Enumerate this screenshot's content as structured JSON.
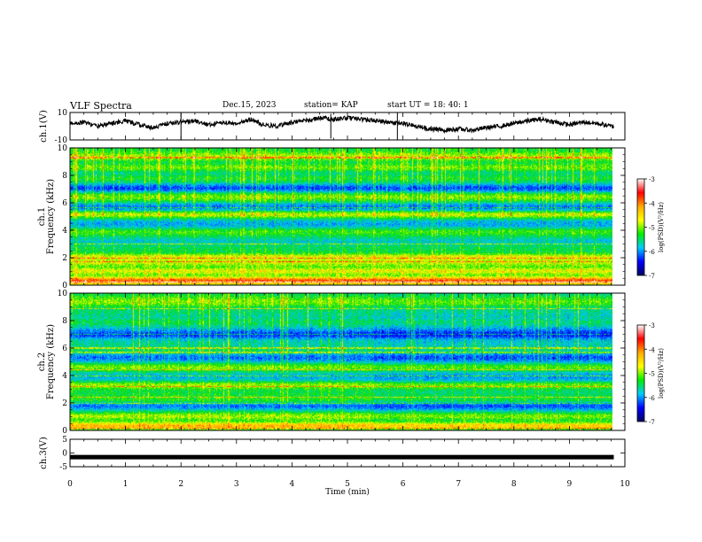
{
  "header": {
    "title": "VLF Spectra",
    "date": "Dec.15, 2023",
    "station": "station= KAP",
    "start": "start UT =  18: 40: 1"
  },
  "colorbar": {
    "label": "log(PSD)(V²/Hz)",
    "ticks": [
      "-3",
      "-4",
      "-5",
      "-6",
      "-7"
    ],
    "colors": [
      "#ffffff",
      "#ff0000",
      "#ffaa00",
      "#ffff00",
      "#00ee00",
      "#00ccff",
      "#0000ff",
      "#000060"
    ]
  },
  "chart_data": [
    {
      "type": "line",
      "panel": "ch1-waveform",
      "ylabel": "ch.1(V)",
      "ylim": [
        -10,
        10
      ],
      "ytick_labels": [
        "10",
        "-10"
      ],
      "x": [
        0,
        0.25,
        0.5,
        0.75,
        1,
        1.25,
        1.5,
        1.75,
        2,
        2.25,
        2.5,
        2.75,
        3,
        3.25,
        3.5,
        3.75,
        4,
        4.25,
        4.5,
        4.75,
        5,
        5.25,
        5.5,
        5.75,
        6,
        6.25,
        6.5,
        6.75,
        7,
        7.25,
        7.5,
        7.75,
        8,
        8.25,
        8.5,
        8.75,
        9,
        9.25,
        9.5,
        9.75
      ],
      "values": [
        2,
        3,
        0,
        2,
        4,
        1,
        -1,
        2,
        3,
        4,
        1,
        3,
        2,
        5,
        1,
        0,
        3,
        4,
        6,
        5,
        6,
        5,
        4,
        3,
        2,
        0,
        -2,
        -3,
        -2,
        -3,
        -1,
        0,
        2,
        4,
        5,
        3,
        1,
        3,
        2,
        0
      ]
    },
    {
      "type": "heatmap",
      "panel": "ch1-spectrogram",
      "ylabel": "ch.1",
      "ylabel2": "Frequency (kHz)",
      "ylim": [
        0,
        10
      ],
      "ytick_labels": [
        "0",
        "2",
        "4",
        "6",
        "8",
        "10"
      ],
      "bands": [
        {
          "f": 0.3,
          "level": -3.6
        },
        {
          "f": 1.0,
          "level": -4.4
        },
        {
          "f": 1.6,
          "level": -4.6
        },
        {
          "f": 2.1,
          "level": -4.2
        },
        {
          "f": 2.5,
          "level": -5.2
        },
        {
          "f": 3.2,
          "level": -5.6
        },
        {
          "f": 3.9,
          "level": -4.9
        },
        {
          "f": 4.5,
          "level": -5.8
        },
        {
          "f": 5.2,
          "level": -4.4
        },
        {
          "f": 5.7,
          "level": -6.0
        },
        {
          "f": 6.5,
          "level": -4.7
        },
        {
          "f": 7.1,
          "level": -6.2
        },
        {
          "f": 7.8,
          "level": -5.1
        },
        {
          "f": 8.6,
          "level": -4.8
        },
        {
          "f": 9.4,
          "level": -4.6
        }
      ]
    },
    {
      "type": "heatmap",
      "panel": "ch2-spectrogram",
      "ylabel": "ch.2",
      "ylabel2": "Frequency (kHz)",
      "ylim": [
        0,
        10
      ],
      "ytick_labels": [
        "0",
        "2",
        "4",
        "6",
        "8",
        "10"
      ],
      "bands": [
        {
          "f": 0.3,
          "level": -4.0
        },
        {
          "f": 1.0,
          "level": -4.6
        },
        {
          "f": 1.8,
          "level": -6.1
        },
        {
          "f": 2.3,
          "level": -5.0
        },
        {
          "f": 3.3,
          "level": -4.6
        },
        {
          "f": 3.9,
          "level": -5.7
        },
        {
          "f": 4.6,
          "level": -4.7
        },
        {
          "f": 5.3,
          "level": -6.0
        },
        {
          "f": 6.3,
          "level": -5.4
        },
        {
          "f": 7.0,
          "level": -6.2
        },
        {
          "f": 7.9,
          "level": -5.2
        },
        {
          "f": 8.7,
          "level": -5.3
        },
        {
          "f": 9.4,
          "level": -4.7
        }
      ]
    },
    {
      "type": "line",
      "panel": "ch3-waveform",
      "ylabel": "ch.3(V)",
      "ylim": [
        -5,
        5
      ],
      "ytick_labels": [
        "5",
        "0",
        "-5"
      ],
      "x": [
        0,
        9.8
      ],
      "values": [
        -1.5,
        -1.5
      ]
    }
  ],
  "xaxis": {
    "label": "Time (min)",
    "range": [
      0,
      10
    ],
    "tick_labels": [
      "0",
      "1",
      "2",
      "3",
      "4",
      "5",
      "6",
      "7",
      "8",
      "9",
      "10"
    ]
  }
}
